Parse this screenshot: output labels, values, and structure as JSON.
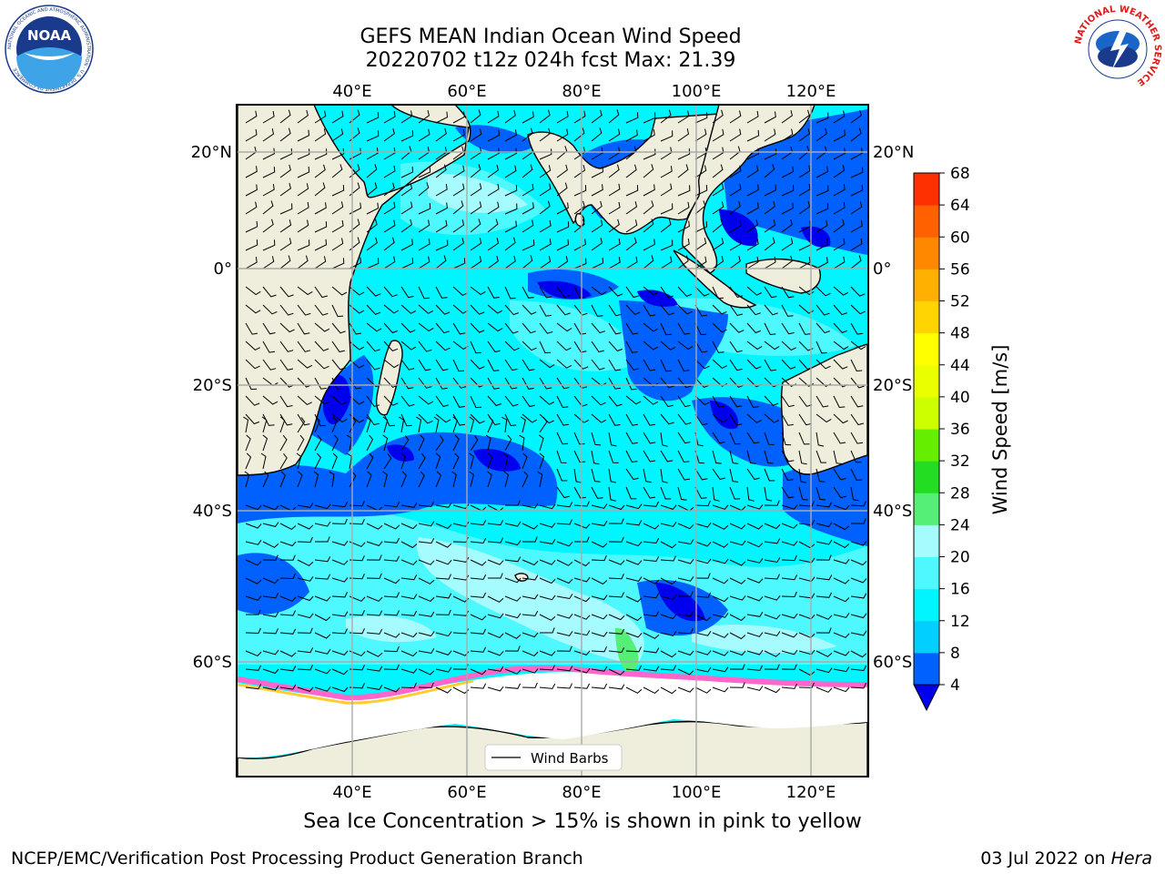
{
  "title": {
    "line1": "GEFS MEAN Indian Ocean Wind Speed",
    "line2": "20220702 t12z 024h fcst   Max: 21.39"
  },
  "axes": {
    "lon_labels": [
      "40°E",
      "60°E",
      "80°E",
      "100°E",
      "120°E"
    ],
    "lat_labels": [
      "20°N",
      "0°",
      "20°S",
      "40°S",
      "60°S"
    ]
  },
  "legend": {
    "label": "Wind Barbs"
  },
  "colorbar": {
    "label": "Wind Speed [m/s]",
    "ticks": [
      "4",
      "8",
      "12",
      "16",
      "20",
      "24",
      "28",
      "32",
      "36",
      "40",
      "44",
      "48",
      "52",
      "56",
      "60",
      "64",
      "68"
    ],
    "colors": [
      "#0061ff",
      "#00cfff",
      "#00f5ff",
      "#4df8ff",
      "#a6fbff",
      "#55ee77",
      "#22dd22",
      "#66ee00",
      "#ccff00",
      "#eaff00",
      "#ffff00",
      "#ffd400",
      "#ffb000",
      "#ff8800",
      "#ff6000",
      "#ff3000",
      "#ff0000"
    ],
    "under_color": "#0000ee"
  },
  "ice_note": "Sea Ice Concentration > 15% is shown in pink to yellow",
  "footer": {
    "left": "NCEP/EMC/Verification Post Processing Product Generation Branch",
    "right_date": "03 Jul 2022 on ",
    "right_machine": "Hera"
  },
  "logos": {
    "noaa": "NOAA",
    "noaa_ring": "NATIONAL OCEANIC AND ATMOSPHERIC ADMINISTRATION · U.S. DEPARTMENT OF COMMERCE",
    "nws_ring": "NATIONAL WEATHER SERVICE"
  },
  "colors": {
    "land": "#efeedc",
    "ocean_low": "#0061ff",
    "ocean_mid": "#00f5ff",
    "ocean_high": "#a6fbff",
    "ice": "#ff66cc"
  }
}
